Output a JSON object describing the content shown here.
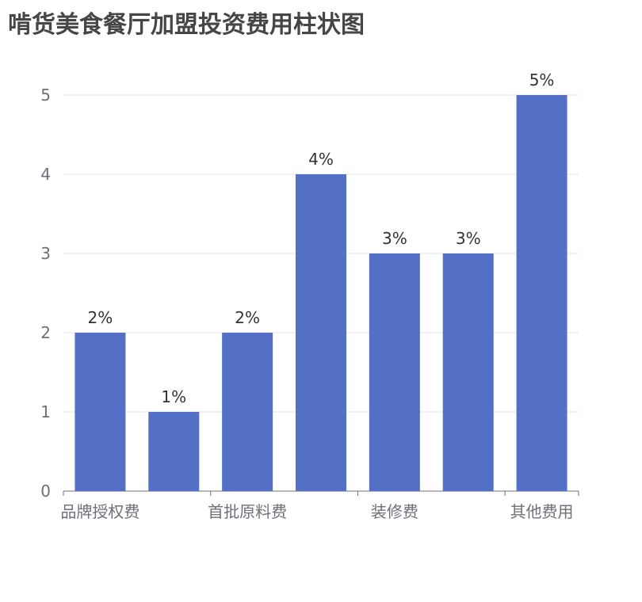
{
  "chart_data": {
    "type": "bar",
    "title": "啃货美食餐厅加盟投资费用柱状图",
    "categories": [
      "品牌授权费",
      "",
      "首批原料费",
      "",
      "装修费",
      "",
      "其他费用"
    ],
    "values": [
      2,
      1,
      2,
      4,
      3,
      3,
      5
    ],
    "data_labels": [
      "2%",
      "1%",
      "2%",
      "4%",
      "3%",
      "3%",
      "5%"
    ],
    "ylim": [
      0,
      5
    ],
    "yticks": [
      "0",
      "1",
      "2",
      "3",
      "4",
      "5"
    ],
    "grid": true,
    "bar_color": "#5470c6"
  }
}
